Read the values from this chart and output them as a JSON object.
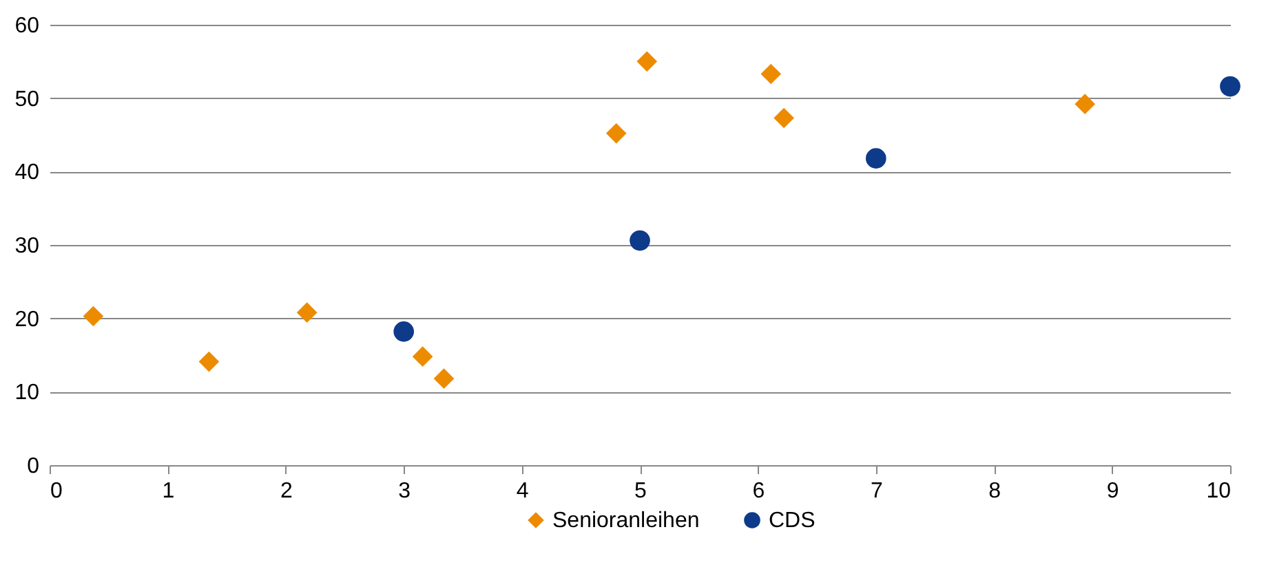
{
  "chart_data": {
    "type": "scatter",
    "xlim": [
      0,
      10
    ],
    "xticks": [
      0,
      1,
      2,
      3,
      4,
      5,
      6,
      7,
      8,
      9,
      10
    ],
    "ylim": [
      0,
      60
    ],
    "yticks": [
      0,
      10,
      20,
      30,
      40,
      50,
      60
    ],
    "grid": "y",
    "legend": "bottom",
    "series": [
      {
        "name": "Senioranleihen",
        "color": "#ed8b00",
        "marker": "diamond",
        "x": [
          0.37,
          1.35,
          2.18,
          3.16,
          3.34,
          4.8,
          5.06,
          6.11,
          6.22,
          8.77
        ],
        "values": [
          20.3,
          14.1,
          20.8,
          14.8,
          11.8,
          45.2,
          55.0,
          53.3,
          47.3,
          49.2
        ]
      },
      {
        "name": "CDS",
        "color": "#0e3a8a",
        "marker": "circle",
        "x": [
          3,
          5,
          7,
          10
        ],
        "values": [
          18.2,
          30.6,
          41.8,
          51.6
        ]
      }
    ]
  }
}
